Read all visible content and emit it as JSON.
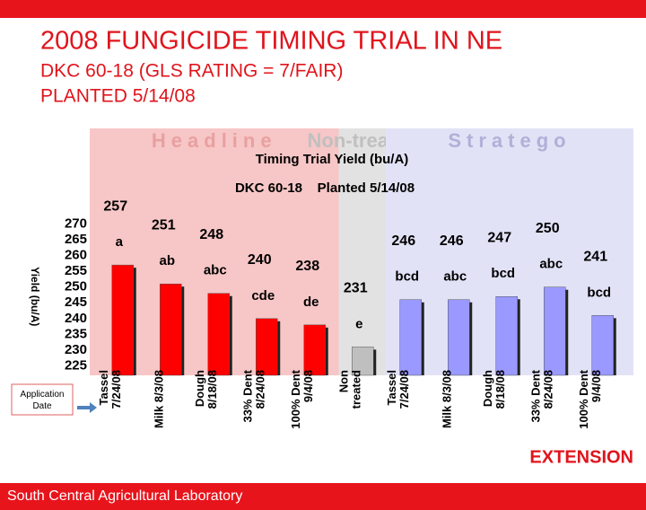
{
  "slide": {
    "title": "2008 FUNGICIDE TIMING TRIAL IN NE",
    "subtitle_1": "DKC 60-18 (GLS RATING = 7/FAIR)",
    "subtitle_2": "PLANTED 5/14/08",
    "footer": "South Central Agricultural Laboratory",
    "logo": "EXTENSION",
    "callout": "Application Date"
  },
  "chart_data": {
    "type": "bar",
    "title": "Timing Trial Yield (bu/A)",
    "subtitle": "DKC 60-18    Planted 5/14/08",
    "y_label": "Yield (bu/A)",
    "groups": [
      {
        "name": "Headline",
        "from": 0,
        "to": 4,
        "color": "#f7c6c6"
      },
      {
        "name": "Non-treated",
        "from": 5,
        "to": 5,
        "color": "#e2e2e2"
      },
      {
        "name": "Stratego",
        "from": 6,
        "to": 10,
        "color": "#e2e2f7"
      }
    ],
    "categories": [
      "Tassel\n7/24/08",
      "Milk 8/3/08",
      "Dough\n8/18/08",
      "33% Dent\n8/24/08",
      "100% Dent\n9/4/08",
      "Non\ntreated",
      "Tassel\n7/24/08",
      "Milk 8/3/08",
      "Dough\n8/18/08",
      "33% Dent\n8/24/08",
      "100% Dent\n9/4/08"
    ],
    "values": [
      257,
      251,
      248,
      240,
      238,
      231,
      246,
      246,
      247,
      250,
      241
    ],
    "letters": [
      "a",
      "ab",
      "abc",
      "cde",
      "de",
      "e",
      "bcd",
      "abc",
      "bcd",
      "abc",
      "bcd"
    ],
    "colors": [
      "#ff0000",
      "#ff0000",
      "#ff0000",
      "#ff0000",
      "#ff0000",
      "#bfbfbf",
      "#9999ff",
      "#9999ff",
      "#9999ff",
      "#9999ff",
      "#9999ff"
    ],
    "ylim": [
      222,
      272
    ],
    "yticks": [
      225,
      230,
      235,
      240,
      245,
      250,
      255,
      260,
      265,
      270
    ],
    "grid": false
  }
}
